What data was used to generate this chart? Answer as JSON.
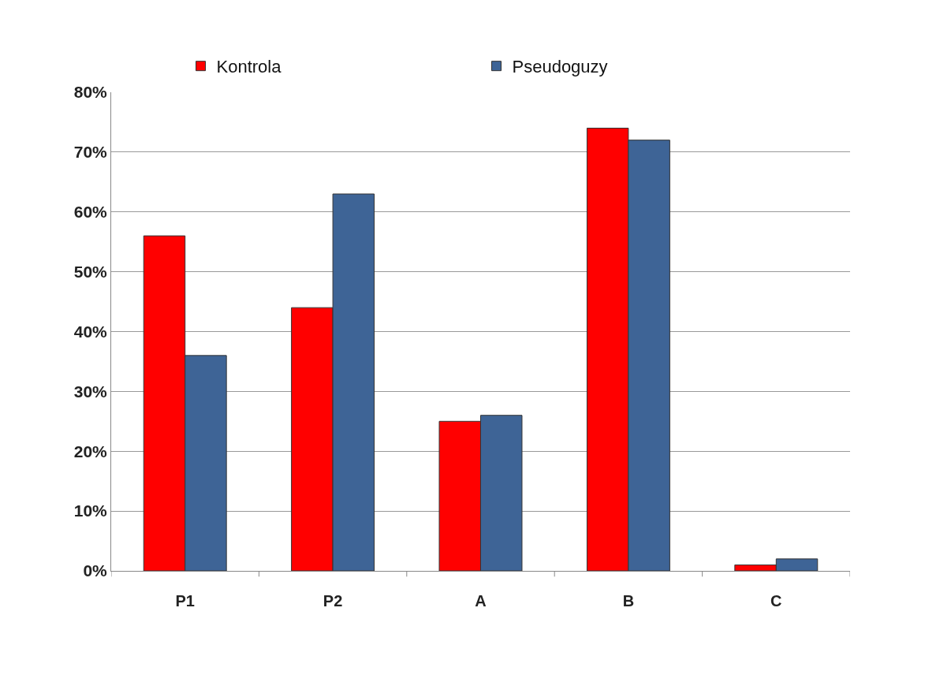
{
  "chart_data": {
    "type": "bar",
    "categories": [
      "P1",
      "P2",
      "A",
      "B",
      "C"
    ],
    "series": [
      {
        "name": "Kontrola",
        "color": "#ff0000",
        "values": [
          56,
          44,
          25,
          74,
          1
        ]
      },
      {
        "name": "Pseudoguzy",
        "color": "#3e6496",
        "values": [
          36,
          63,
          26,
          72,
          2
        ]
      }
    ],
    "ylim": [
      0,
      80
    ],
    "yticks": [
      {
        "value": 0,
        "label": "0%"
      },
      {
        "value": 10,
        "label": "10%"
      },
      {
        "value": 20,
        "label": "20%"
      },
      {
        "value": 30,
        "label": "30%"
      },
      {
        "value": 40,
        "label": "40%"
      },
      {
        "value": 50,
        "label": "50%"
      },
      {
        "value": 60,
        "label": "60%"
      },
      {
        "value": 70,
        "label": "70%"
      },
      {
        "value": 80,
        "label": "80%"
      }
    ],
    "grid": "y",
    "legend": "top"
  }
}
